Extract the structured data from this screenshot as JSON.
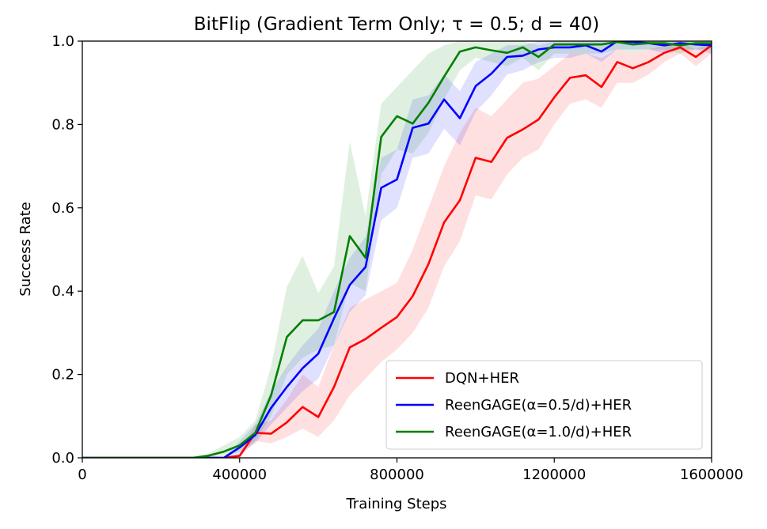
{
  "chart_data": {
    "type": "line",
    "title": "BitFlip (Gradient Term Only; τ = 0.5; d = 40)",
    "xlabel": "Training Steps",
    "ylabel": "Success Rate",
    "xlim": [
      0,
      1600000
    ],
    "ylim": [
      0,
      1.0
    ],
    "xticks": [
      0,
      400000,
      800000,
      1200000,
      1600000
    ],
    "xtick_labels": [
      "0",
      "400000",
      "800000",
      "1200000",
      "1600000"
    ],
    "yticks": [
      0,
      0.2,
      0.4,
      0.6,
      0.8,
      1.0
    ],
    "ytick_labels": [
      "0.0",
      "0.2",
      "0.4",
      "0.6",
      "0.8",
      "1.0"
    ],
    "grid": false,
    "legend_position": "lower-right",
    "series": [
      {
        "name": "DQN+HER",
        "color": "#ff0000",
        "x": [
          0,
          40000,
          80000,
          120000,
          160000,
          200000,
          240000,
          280000,
          320000,
          360000,
          400000,
          440000,
          480000,
          520000,
          560000,
          600000,
          640000,
          680000,
          720000,
          760000,
          800000,
          840000,
          880000,
          920000,
          960000,
          1000000,
          1040000,
          1080000,
          1120000,
          1160000,
          1200000,
          1240000,
          1280000,
          1320000,
          1360000,
          1400000,
          1440000,
          1480000,
          1520000,
          1560000,
          1600000
        ],
        "values": [
          0,
          0,
          0,
          0,
          0,
          0,
          0,
          0,
          0,
          0,
          0.005,
          0.06,
          0.058,
          0.085,
          0.122,
          0.098,
          0.17,
          0.265,
          0.285,
          0.312,
          0.338,
          0.388,
          0.465,
          0.565,
          0.618,
          0.72,
          0.71,
          0.768,
          0.788,
          0.812,
          0.865,
          0.912,
          0.918,
          0.89,
          0.95,
          0.935,
          0.95,
          0.972,
          0.985,
          0.962,
          0.99
        ],
        "lower": [
          0,
          0,
          0,
          0,
          0,
          0,
          0,
          0,
          0,
          0,
          0,
          0.04,
          0.035,
          0.05,
          0.07,
          0.05,
          0.09,
          0.15,
          0.19,
          0.23,
          0.26,
          0.3,
          0.36,
          0.46,
          0.52,
          0.63,
          0.62,
          0.68,
          0.72,
          0.74,
          0.8,
          0.85,
          0.86,
          0.84,
          0.9,
          0.9,
          0.92,
          0.95,
          0.97,
          0.94,
          0.97
        ],
        "upper": [
          0,
          0,
          0,
          0,
          0,
          0,
          0,
          0,
          0,
          0,
          0.01,
          0.08,
          0.09,
          0.14,
          0.2,
          0.17,
          0.27,
          0.36,
          0.38,
          0.4,
          0.42,
          0.5,
          0.6,
          0.7,
          0.78,
          0.84,
          0.82,
          0.86,
          0.9,
          0.91,
          0.94,
          0.97,
          0.97,
          0.96,
          0.98,
          0.97,
          0.98,
          0.99,
          1.0,
          0.98,
          1.0
        ]
      },
      {
        "name": "ReenGAGE(α=0.5/d)+HER",
        "color": "#0000ff",
        "x": [
          0,
          40000,
          80000,
          120000,
          160000,
          200000,
          240000,
          280000,
          320000,
          360000,
          400000,
          440000,
          480000,
          520000,
          560000,
          600000,
          640000,
          680000,
          720000,
          760000,
          800000,
          840000,
          880000,
          920000,
          960000,
          1000000,
          1040000,
          1080000,
          1120000,
          1160000,
          1200000,
          1240000,
          1280000,
          1320000,
          1360000,
          1400000,
          1440000,
          1480000,
          1520000,
          1560000,
          1600000
        ],
        "values": [
          0,
          0,
          0,
          0,
          0,
          0,
          0,
          0,
          0,
          0,
          0.025,
          0.055,
          0.12,
          0.17,
          0.215,
          0.25,
          0.335,
          0.415,
          0.458,
          0.648,
          0.668,
          0.792,
          0.802,
          0.86,
          0.815,
          0.892,
          0.922,
          0.962,
          0.965,
          0.98,
          0.985,
          0.985,
          0.99,
          0.975,
          1.0,
          0.998,
          0.995,
          0.99,
          0.995,
          0.992,
          0.99
        ],
        "lower": [
          0,
          0,
          0,
          0,
          0,
          0,
          0,
          0,
          0,
          0,
          0.01,
          0.035,
          0.08,
          0.12,
          0.16,
          0.19,
          0.27,
          0.35,
          0.39,
          0.57,
          0.6,
          0.72,
          0.73,
          0.79,
          0.75,
          0.83,
          0.87,
          0.92,
          0.93,
          0.95,
          0.96,
          0.96,
          0.97,
          0.95,
          0.98,
          0.98,
          0.98,
          0.97,
          0.98,
          0.98,
          0.97
        ],
        "upper": [
          0,
          0,
          0,
          0,
          0,
          0,
          0,
          0,
          0,
          0,
          0.04,
          0.08,
          0.16,
          0.22,
          0.27,
          0.31,
          0.4,
          0.48,
          0.53,
          0.72,
          0.74,
          0.86,
          0.87,
          0.92,
          0.88,
          0.95,
          0.97,
          0.99,
          0.99,
          1.0,
          1.0,
          1.0,
          1.0,
          1.0,
          1.0,
          1.0,
          1.0,
          1.0,
          1.0,
          1.0,
          1.0
        ]
      },
      {
        "name": "ReenGAGE(α=1.0/d)+HER",
        "color": "#008000",
        "x": [
          0,
          40000,
          80000,
          120000,
          160000,
          200000,
          240000,
          280000,
          320000,
          360000,
          400000,
          440000,
          480000,
          520000,
          560000,
          600000,
          640000,
          680000,
          720000,
          760000,
          800000,
          840000,
          880000,
          920000,
          960000,
          1000000,
          1040000,
          1080000,
          1120000,
          1160000,
          1200000,
          1240000,
          1280000,
          1320000,
          1360000,
          1400000,
          1440000,
          1480000,
          1520000,
          1560000,
          1600000
        ],
        "values": [
          0,
          0,
          0,
          0,
          0,
          0,
          0,
          0,
          0.005,
          0.015,
          0.03,
          0.06,
          0.15,
          0.29,
          0.33,
          0.33,
          0.35,
          0.532,
          0.48,
          0.77,
          0.82,
          0.802,
          0.852,
          0.915,
          0.975,
          0.985,
          0.978,
          0.972,
          0.985,
          0.962,
          0.992,
          0.992,
          0.992,
          0.992,
          0.998,
          0.992,
          0.995,
          0.995,
          0.99,
          0.995,
          0.995
        ],
        "lower": [
          0,
          0,
          0,
          0,
          0,
          0,
          0,
          0,
          0,
          0.005,
          0.015,
          0.04,
          0.1,
          0.2,
          0.24,
          0.26,
          0.27,
          0.42,
          0.4,
          0.68,
          0.74,
          0.73,
          0.78,
          0.86,
          0.93,
          0.96,
          0.95,
          0.94,
          0.96,
          0.93,
          0.97,
          0.97,
          0.97,
          0.97,
          0.98,
          0.97,
          0.98,
          0.98,
          0.97,
          0.98,
          0.98
        ],
        "upper": [
          0,
          0,
          0,
          0,
          0,
          0,
          0,
          0,
          0.01,
          0.03,
          0.05,
          0.09,
          0.22,
          0.41,
          0.485,
          0.395,
          0.46,
          0.76,
          0.58,
          0.85,
          0.89,
          0.93,
          0.97,
          0.99,
          1.0,
          1.0,
          1.0,
          1.0,
          1.0,
          0.99,
          1.0,
          1.0,
          1.0,
          1.0,
          1.0,
          1.0,
          1.0,
          1.0,
          1.0,
          1.0,
          1.0
        ]
      }
    ]
  }
}
